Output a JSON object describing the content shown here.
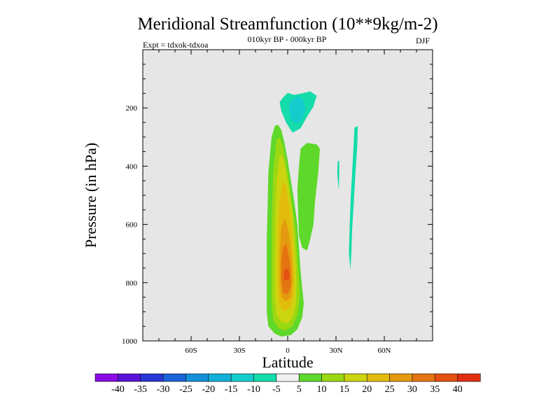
{
  "chart_data": {
    "type": "heatmap",
    "title": "Meridional Streamfunction (10**9kg/m-2)",
    "subtitle_left": "Expt = tdxok-tdxoa",
    "subtitle_center": "010kyr BP - 000kyr BP",
    "subtitle_right": "DJF",
    "xlabel": "Latitude",
    "ylabel": "Pressure (in hPa)",
    "x_range": [
      -90,
      90
    ],
    "y_range": [
      1000,
      0
    ],
    "y_direction": "pressure decreasing upward",
    "xticks": [
      -60,
      -30,
      0,
      30,
      60
    ],
    "xtick_labels": [
      "60S",
      "30S",
      "0",
      "30N",
      "60N"
    ],
    "yticks": [
      200,
      400,
      600,
      800,
      1000
    ],
    "ytick_labels": [
      "200",
      "400",
      "600",
      "800",
      "1000"
    ],
    "plot_background": "#e6e6e6",
    "colorbar": {
      "orientation": "horizontal",
      "labels": [
        "-40",
        "-35",
        "-30",
        "-25",
        "-20",
        "-15",
        "-10",
        "-5",
        "5",
        "10",
        "15",
        "20",
        "25",
        "30",
        "35",
        "40"
      ],
      "colors": [
        "#8a0ce3",
        "#5a14d8",
        "#2838d4",
        "#1a64d8",
        "#1490d8",
        "#12b0d8",
        "#14cccc",
        "#14dcaa",
        "#f0f0f0",
        "#5ed82a",
        "#9ad812",
        "#ccd410",
        "#e2bc0c",
        "#e49a0e",
        "#e47410",
        "#e45012",
        "#e02e12"
      ]
    },
    "features": [
      {
        "name": "southern positive cell",
        "lat_center": -5,
        "pressure_range": [
          250,
          980
        ],
        "max_value": 35,
        "max_location": {
          "lat": -2,
          "pressure": 770
        }
      },
      {
        "name": "upper negative cell",
        "lat_center": 5,
        "pressure_range": [
          140,
          290
        ],
        "min_value": -15
      },
      {
        "name": "northern positive band",
        "lat_center": 12,
        "pressure_range": [
          320,
          690
        ],
        "max_value": 10
      },
      {
        "name": "high-latitude negative band",
        "lat_center": 40,
        "pressure_range": [
          265,
          750
        ],
        "min_value": -10
      }
    ]
  }
}
